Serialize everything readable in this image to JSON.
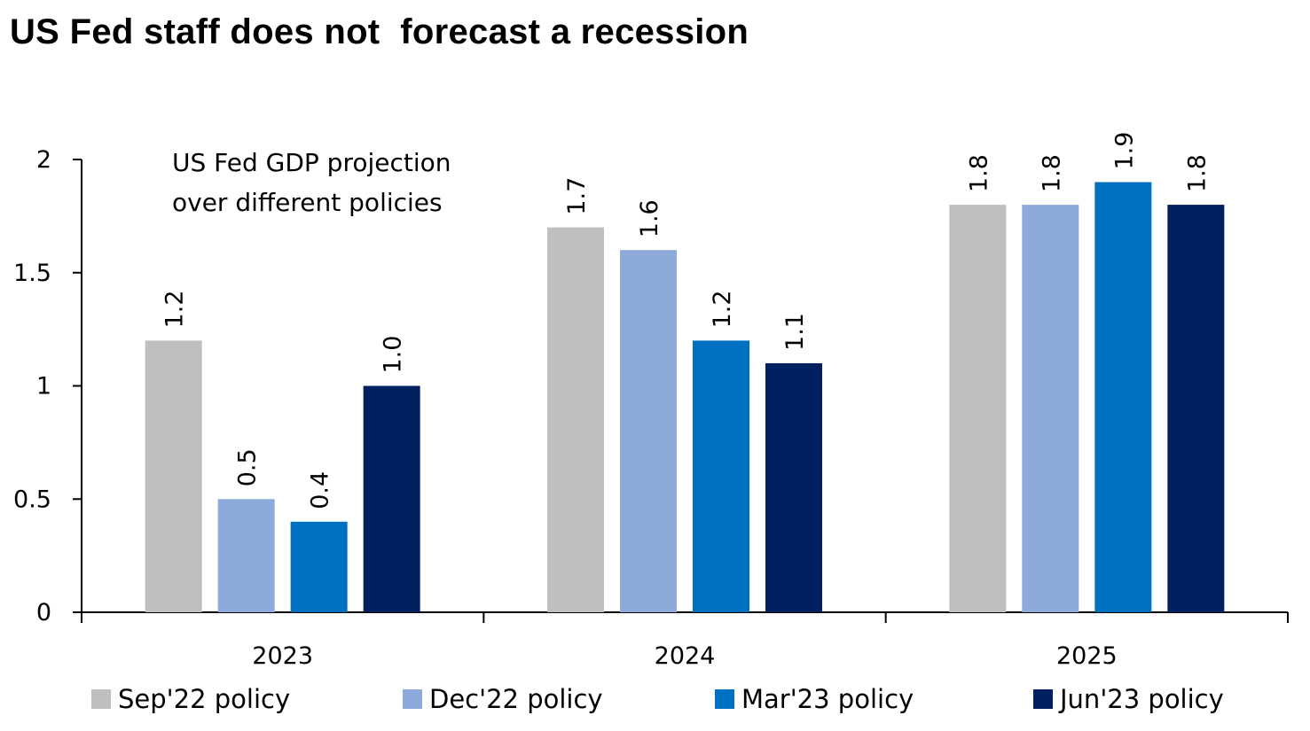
{
  "title": "US Fed staff does not  forecast a recession",
  "chart_data": {
    "type": "bar",
    "annotation": [
      "US Fed GDP projection",
      "over different policies"
    ],
    "categories": [
      "2023",
      "2024",
      "2025"
    ],
    "series": [
      {
        "name": "Sep'22 policy",
        "color": "#bfbfbf",
        "values": [
          1.2,
          1.7,
          1.8
        ],
        "labels": [
          "1.2",
          "1.7",
          "1.8"
        ]
      },
      {
        "name": "Dec'22 policy",
        "color": "#8eaadb",
        "values": [
          0.5,
          1.6,
          1.8
        ],
        "labels": [
          "0.5",
          "1.6",
          "1.8"
        ]
      },
      {
        "name": "Mar'23 policy",
        "color": "#0070c0",
        "values": [
          0.4,
          1.2,
          1.9
        ],
        "labels": [
          "0.4",
          "1.2",
          "1.9"
        ]
      },
      {
        "name": "Jun'23 policy",
        "color": "#002060",
        "values": [
          1.0,
          1.1,
          1.8
        ],
        "labels": [
          "1.0",
          "1.1",
          "1.8"
        ]
      }
    ],
    "yticks": [
      "0",
      "0.5",
      "1",
      "1.5",
      "2"
    ],
    "ylim": [
      0,
      2
    ],
    "grid": false,
    "legend_position": "bottom"
  }
}
